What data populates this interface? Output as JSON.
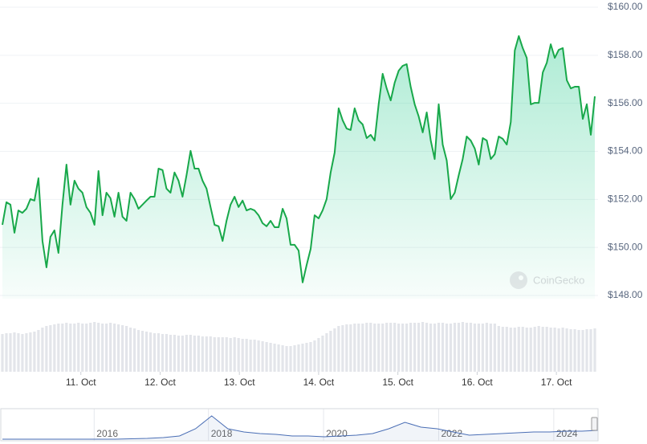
{
  "chart_data": {
    "type": "line",
    "color": "#18a84a",
    "watermark": "CoinGecko",
    "values": [
      150.94,
      151.88,
      151.78,
      150.61,
      151.54,
      151.44,
      151.61,
      152.01,
      151.95,
      152.88,
      150.27,
      149.17,
      150.44,
      150.71,
      149.77,
      151.78,
      153.45,
      151.78,
      152.78,
      152.45,
      152.28,
      151.68,
      151.44,
      150.94,
      153.18,
      151.34,
      152.28,
      152.05,
      151.28,
      152.28,
      151.28,
      151.11,
      152.28,
      152.01,
      151.61,
      151.78,
      151.95,
      152.11,
      152.11,
      153.28,
      153.22,
      152.45,
      152.28,
      153.12,
      152.78,
      152.11,
      153.01,
      154.02,
      153.28,
      153.28,
      152.78,
      152.45,
      151.68,
      150.94,
      150.88,
      150.27,
      151.11,
      151.78,
      152.11,
      151.68,
      151.95,
      151.54,
      151.61,
      151.54,
      151.34,
      151.01,
      150.88,
      151.11,
      150.84,
      150.84,
      151.61,
      151.21,
      150.11,
      150.11,
      149.87,
      148.54,
      149.27,
      149.94,
      151.34,
      151.21,
      151.54,
      152.01,
      153.12,
      153.95,
      155.79,
      155.29,
      154.95,
      154.89,
      155.79,
      155.29,
      155.12,
      154.55,
      154.69,
      154.45,
      155.96,
      157.23,
      156.62,
      156.12,
      156.86,
      157.36,
      157.56,
      157.63,
      156.69,
      155.96,
      155.45,
      154.79,
      155.62,
      154.45,
      153.68,
      155.96,
      154.28,
      153.62,
      152.01,
      152.28,
      153.01,
      153.68,
      154.62,
      154.45,
      154.12,
      153.45,
      154.55,
      154.45,
      153.68,
      153.88,
      154.62,
      154.52,
      154.28,
      155.22,
      158.2,
      158.8,
      158.3,
      157.89,
      155.96,
      156.02,
      156.02,
      157.29,
      157.69,
      158.46,
      157.89,
      158.23,
      158.3,
      156.96,
      156.62,
      156.69,
      156.69,
      155.35,
      155.96,
      154.69,
      156.29
    ],
    "xlim": [
      0,
      148
    ],
    "xticks": [
      {
        "value": 19.6,
        "label": "11. Oct"
      },
      {
        "value": 39.4,
        "label": "12. Oct"
      },
      {
        "value": 59.2,
        "label": "13. Oct"
      },
      {
        "value": 79,
        "label": "14. Oct"
      },
      {
        "value": 98.8,
        "label": "15. Oct"
      },
      {
        "value": 118.6,
        "label": "16. Oct"
      },
      {
        "value": 138.4,
        "label": "17. Oct"
      }
    ],
    "ylim": [
      148,
      160
    ],
    "yticks": [
      {
        "value": 148,
        "label": "$148.00"
      },
      {
        "value": 150,
        "label": "$150.00"
      },
      {
        "value": 152,
        "label": "$152.00"
      },
      {
        "value": 154,
        "label": "$154.00"
      },
      {
        "value": 156,
        "label": "$156.00"
      },
      {
        "value": 158,
        "label": "$158.00"
      },
      {
        "value": 160,
        "label": "$160.00"
      }
    ],
    "grid": true,
    "volume": {
      "color": "#e3e5ea",
      "vlim": [
        0,
        70
      ],
      "values": [
        47,
        48,
        48,
        49,
        48,
        47,
        48,
        49,
        50,
        52,
        55,
        57,
        58,
        59,
        60,
        60,
        61,
        60,
        60,
        61,
        60,
        60,
        61,
        62,
        61,
        60,
        60,
        61,
        60,
        59,
        58,
        57,
        55,
        54,
        52,
        51,
        50,
        49,
        48,
        48,
        47,
        47,
        46,
        46,
        45,
        45,
        46,
        46,
        45,
        45,
        44,
        44,
        44,
        43,
        43,
        43,
        43,
        42,
        43,
        42,
        41,
        41,
        40,
        40,
        39,
        38,
        37,
        36,
        35,
        34,
        33,
        32,
        32,
        33,
        34,
        35,
        36,
        37,
        39,
        42,
        45,
        48,
        51,
        54,
        57,
        58,
        59,
        59,
        60,
        60,
        60,
        61,
        61,
        60,
        60,
        60,
        61,
        61,
        61,
        60,
        60,
        60,
        61,
        61,
        61,
        62,
        61,
        60,
        60,
        61,
        61,
        60,
        60,
        61,
        61,
        62,
        61,
        61,
        60,
        60,
        60,
        61,
        60,
        60,
        57,
        56,
        56,
        55,
        55,
        56,
        56,
        55,
        55,
        56,
        57,
        56,
        56,
        55,
        55,
        54,
        55,
        54,
        53,
        53,
        52,
        52,
        53,
        53,
        54
      ]
    },
    "navigator": {
      "color": "#4a6eb5",
      "ylim": [
        0,
        36
      ],
      "xlim": [
        0,
        37
      ],
      "values": [
        1,
        1,
        1,
        1,
        1,
        1,
        1,
        1,
        1.5,
        2,
        3,
        5,
        14,
        30,
        14,
        10,
        8,
        7,
        5,
        5,
        4,
        5,
        6,
        8,
        14,
        22,
        16,
        14,
        10,
        6,
        7,
        8,
        9,
        10,
        10,
        11,
        11,
        12
      ],
      "xticks": [
        {
          "value": 5.7,
          "label": "2016"
        },
        {
          "value": 12.8,
          "label": "2018"
        },
        {
          "value": 19.95,
          "label": "2020"
        },
        {
          "value": 27.1,
          "label": "2022"
        },
        {
          "value": 34.25,
          "label": "2024"
        }
      ]
    }
  }
}
